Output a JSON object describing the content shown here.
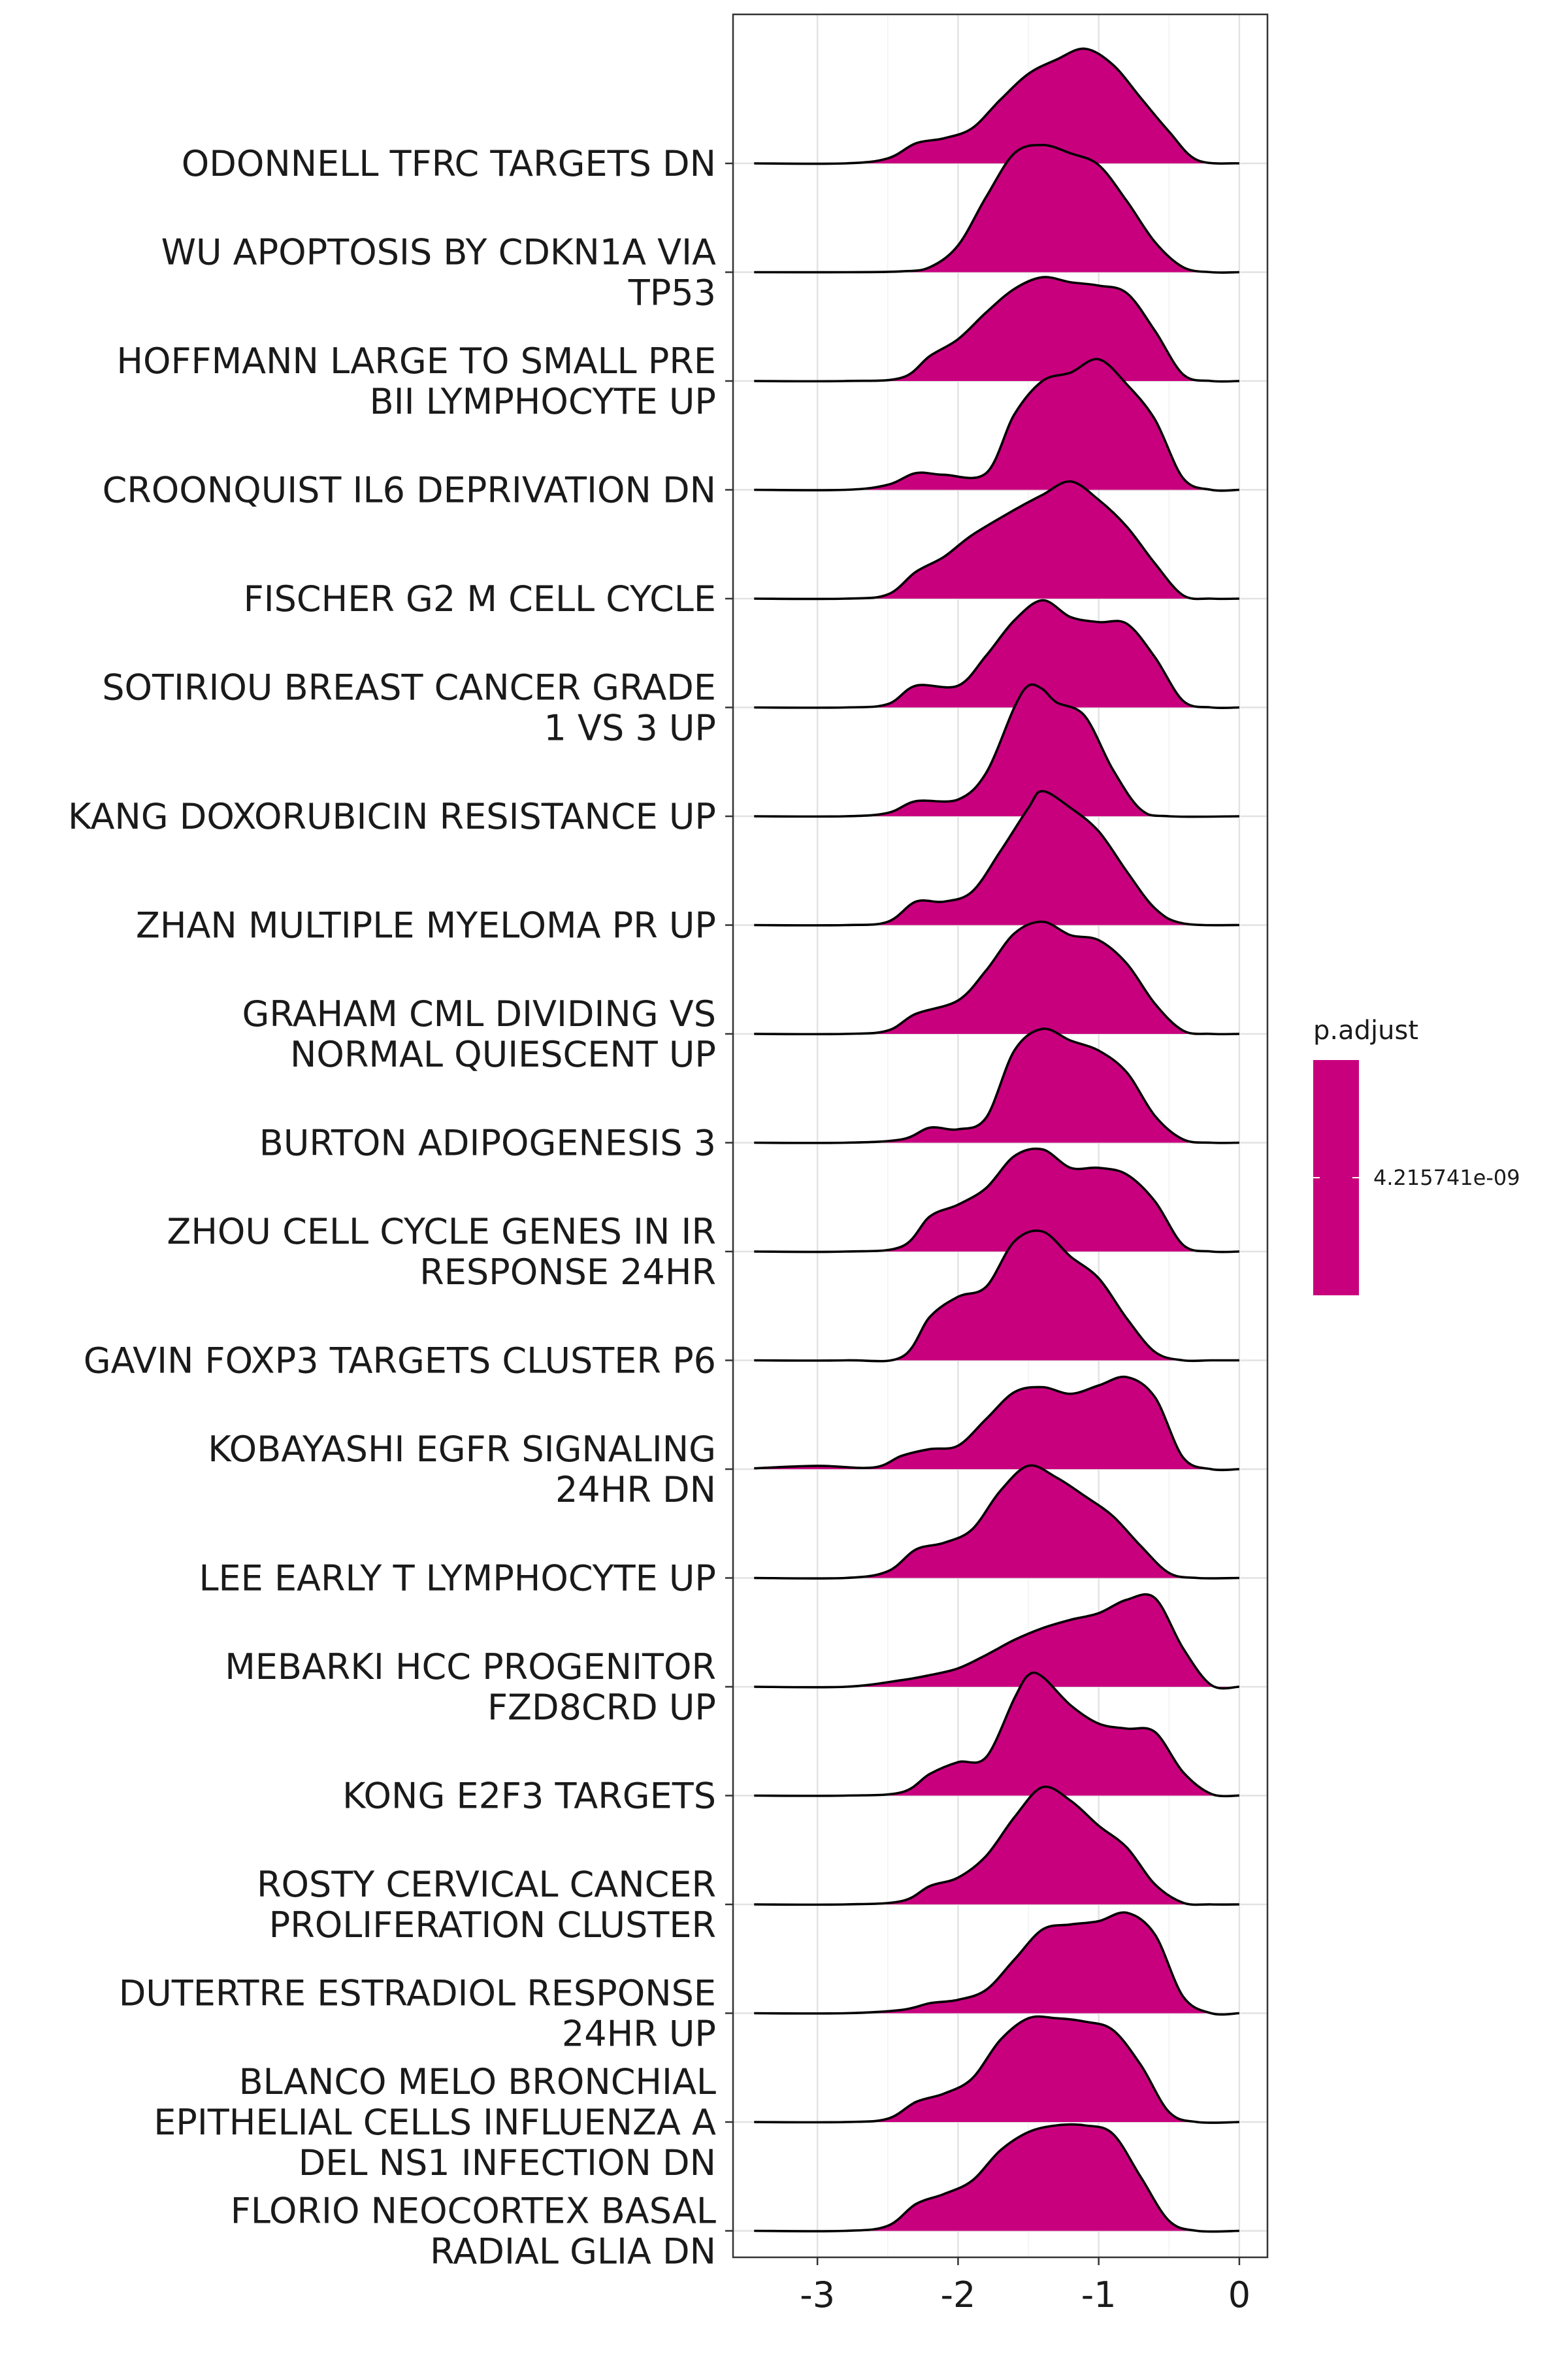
{
  "chart_data": {
    "type": "ridgeline",
    "xlim": [
      -3.6,
      0.2
    ],
    "x_ticks": [
      "-3",
      "-2",
      "-1",
      "0"
    ],
    "x_tick_values": [
      -3,
      -2,
      -1,
      0
    ],
    "fill_color": "#C9007E",
    "grid": true,
    "legend": {
      "title": "p.adjust",
      "tick_label": "4.215741e-09",
      "placement": "right"
    },
    "categories": [
      "ODONNELL TFRC TARGETS DN",
      "WU APOPTOSIS BY CDKN1A VIA\nTP53",
      "HOFFMANN LARGE TO SMALL PRE\nBII LYMPHOCYTE UP",
      "CROONQUIST IL6 DEPRIVATION DN",
      "FISCHER G2 M CELL CYCLE",
      "SOTIRIOU BREAST CANCER GRADE\n1 VS 3 UP",
      "KANG DOXORUBICIN RESISTANCE UP",
      "ZHAN MULTIPLE MYELOMA PR UP",
      "GRAHAM CML DIVIDING VS\nNORMAL QUIESCENT UP",
      "BURTON ADIPOGENESIS 3",
      "ZHOU CELL CYCLE GENES IN IR\nRESPONSE 24HR",
      "GAVIN FOXP3 TARGETS CLUSTER P6",
      "KOBAYASHI EGFR SIGNALING\n24HR DN",
      "LEE EARLY T LYMPHOCYTE UP",
      "MEBARKI HCC PROGENITOR\nFZD8CRD UP",
      "KONG E2F3 TARGETS",
      "ROSTY CERVICAL CANCER\nPROLIFERATION CLUSTER",
      "DUTERTRE ESTRADIOL RESPONSE\n24HR UP",
      "BLANCO MELO BRONCHIAL\nEPITHELIAL CELLS INFLUENZA A\nDEL NS1 INFECTION DN",
      "FLORIO NEOCORTEX BASAL\nRADIAL GLIA DN"
    ],
    "densities": [
      [
        [
          -3.45,
          0
        ],
        [
          -2.8,
          0
        ],
        [
          -2.5,
          0.06
        ],
        [
          -2.3,
          0.24
        ],
        [
          -2.1,
          0.3
        ],
        [
          -1.9,
          0.42
        ],
        [
          -1.7,
          0.76
        ],
        [
          -1.5,
          1.07
        ],
        [
          -1.3,
          1.24
        ],
        [
          -1.1,
          1.37
        ],
        [
          -0.9,
          1.18
        ],
        [
          -0.7,
          0.78
        ],
        [
          -0.5,
          0.38
        ],
        [
          -0.3,
          0.04
        ],
        [
          0,
          0
        ]
      ],
      [
        [
          -3.45,
          0
        ],
        [
          -2.8,
          0
        ],
        [
          -2.4,
          0.01
        ],
        [
          -2.2,
          0.06
        ],
        [
          -2.0,
          0.32
        ],
        [
          -1.8,
          0.9
        ],
        [
          -1.6,
          1.42
        ],
        [
          -1.4,
          1.52
        ],
        [
          -1.2,
          1.42
        ],
        [
          -1.0,
          1.28
        ],
        [
          -0.8,
          0.85
        ],
        [
          -0.6,
          0.36
        ],
        [
          -0.4,
          0.06
        ],
        [
          -0.2,
          0
        ],
        [
          0,
          0
        ]
      ],
      [
        [
          -3.45,
          0
        ],
        [
          -2.8,
          0
        ],
        [
          -2.4,
          0.04
        ],
        [
          -2.2,
          0.3
        ],
        [
          -2.0,
          0.5
        ],
        [
          -1.8,
          0.82
        ],
        [
          -1.6,
          1.1
        ],
        [
          -1.4,
          1.24
        ],
        [
          -1.2,
          1.18
        ],
        [
          -1.0,
          1.14
        ],
        [
          -0.8,
          1.05
        ],
        [
          -0.6,
          0.6
        ],
        [
          -0.4,
          0.08
        ],
        [
          -0.2,
          0
        ],
        [
          0,
          0
        ]
      ],
      [
        [
          -3.45,
          0
        ],
        [
          -2.8,
          0
        ],
        [
          -2.5,
          0.06
        ],
        [
          -2.3,
          0.2
        ],
        [
          -2.1,
          0.18
        ],
        [
          -1.8,
          0.2
        ],
        [
          -1.6,
          0.9
        ],
        [
          -1.4,
          1.3
        ],
        [
          -1.2,
          1.4
        ],
        [
          -1.0,
          1.56
        ],
        [
          -0.8,
          1.26
        ],
        [
          -0.6,
          0.84
        ],
        [
          -0.4,
          0.14
        ],
        [
          -0.2,
          0
        ],
        [
          0,
          0
        ]
      ],
      [
        [
          -3.45,
          0
        ],
        [
          -2.8,
          0
        ],
        [
          -2.5,
          0.05
        ],
        [
          -2.3,
          0.32
        ],
        [
          -2.1,
          0.5
        ],
        [
          -1.9,
          0.76
        ],
        [
          -1.6,
          1.06
        ],
        [
          -1.4,
          1.24
        ],
        [
          -1.2,
          1.4
        ],
        [
          -1.0,
          1.18
        ],
        [
          -0.8,
          0.86
        ],
        [
          -0.6,
          0.42
        ],
        [
          -0.4,
          0.04
        ],
        [
          -0.2,
          0
        ],
        [
          0,
          0
        ]
      ],
      [
        [
          -3.45,
          0
        ],
        [
          -2.8,
          0
        ],
        [
          -2.5,
          0.04
        ],
        [
          -2.3,
          0.26
        ],
        [
          -2.0,
          0.26
        ],
        [
          -1.8,
          0.62
        ],
        [
          -1.6,
          1.04
        ],
        [
          -1.4,
          1.28
        ],
        [
          -1.2,
          1.08
        ],
        [
          -1.0,
          1.02
        ],
        [
          -0.8,
          1.0
        ],
        [
          -0.6,
          0.6
        ],
        [
          -0.4,
          0.08
        ],
        [
          -0.2,
          0
        ],
        [
          0,
          0
        ]
      ],
      [
        [
          -3.45,
          0
        ],
        [
          -2.8,
          0
        ],
        [
          -2.5,
          0.04
        ],
        [
          -2.3,
          0.18
        ],
        [
          -2.0,
          0.2
        ],
        [
          -1.8,
          0.52
        ],
        [
          -1.6,
          1.3
        ],
        [
          -1.5,
          1.56
        ],
        [
          -1.4,
          1.52
        ],
        [
          -1.3,
          1.36
        ],
        [
          -1.1,
          1.2
        ],
        [
          -0.9,
          0.56
        ],
        [
          -0.7,
          0.08
        ],
        [
          -0.5,
          0
        ],
        [
          0,
          0
        ]
      ],
      [
        [
          -3.45,
          0
        ],
        [
          -2.8,
          0
        ],
        [
          -2.5,
          0.04
        ],
        [
          -2.3,
          0.28
        ],
        [
          -2.1,
          0.28
        ],
        [
          -1.9,
          0.4
        ],
        [
          -1.7,
          0.88
        ],
        [
          -1.5,
          1.4
        ],
        [
          -1.4,
          1.6
        ],
        [
          -1.2,
          1.4
        ],
        [
          -1.0,
          1.12
        ],
        [
          -0.8,
          0.64
        ],
        [
          -0.6,
          0.2
        ],
        [
          -0.4,
          0.02
        ],
        [
          0,
          0
        ]
      ],
      [
        [
          -3.45,
          0
        ],
        [
          -2.8,
          0
        ],
        [
          -2.5,
          0.04
        ],
        [
          -2.3,
          0.24
        ],
        [
          -2.0,
          0.4
        ],
        [
          -1.8,
          0.76
        ],
        [
          -1.6,
          1.2
        ],
        [
          -1.4,
          1.34
        ],
        [
          -1.2,
          1.18
        ],
        [
          -1.0,
          1.12
        ],
        [
          -0.8,
          0.84
        ],
        [
          -0.6,
          0.36
        ],
        [
          -0.4,
          0.04
        ],
        [
          -0.2,
          0
        ],
        [
          0,
          0
        ]
      ],
      [
        [
          -3.45,
          0
        ],
        [
          -2.8,
          0
        ],
        [
          -2.4,
          0.04
        ],
        [
          -2.2,
          0.18
        ],
        [
          -2.0,
          0.16
        ],
        [
          -1.8,
          0.3
        ],
        [
          -1.6,
          1.1
        ],
        [
          -1.4,
          1.36
        ],
        [
          -1.2,
          1.22
        ],
        [
          -1.0,
          1.1
        ],
        [
          -0.8,
          0.84
        ],
        [
          -0.6,
          0.32
        ],
        [
          -0.4,
          0.04
        ],
        [
          -0.2,
          0
        ],
        [
          0,
          0
        ]
      ],
      [
        [
          -3.45,
          0
        ],
        [
          -2.8,
          0
        ],
        [
          -2.4,
          0.06
        ],
        [
          -2.2,
          0.42
        ],
        [
          -2.0,
          0.56
        ],
        [
          -1.8,
          0.76
        ],
        [
          -1.6,
          1.14
        ],
        [
          -1.4,
          1.22
        ],
        [
          -1.2,
          1.0
        ],
        [
          -1.0,
          1.0
        ],
        [
          -0.8,
          0.92
        ],
        [
          -0.6,
          0.6
        ],
        [
          -0.4,
          0.08
        ],
        [
          -0.2,
          0
        ],
        [
          0,
          0
        ]
      ],
      [
        [
          -3.45,
          0
        ],
        [
          -2.8,
          0
        ],
        [
          -2.4,
          0.04
        ],
        [
          -2.2,
          0.52
        ],
        [
          -2.0,
          0.76
        ],
        [
          -1.8,
          0.88
        ],
        [
          -1.6,
          1.42
        ],
        [
          -1.4,
          1.54
        ],
        [
          -1.2,
          1.24
        ],
        [
          -1.0,
          0.98
        ],
        [
          -0.8,
          0.5
        ],
        [
          -0.6,
          0.1
        ],
        [
          -0.4,
          0
        ],
        [
          -0.2,
          0
        ],
        [
          0,
          0
        ]
      ],
      [
        [
          -3.45,
          0.01
        ],
        [
          -3.0,
          0.04
        ],
        [
          -2.6,
          0.02
        ],
        [
          -2.4,
          0.16
        ],
        [
          -2.2,
          0.24
        ],
        [
          -2.0,
          0.28
        ],
        [
          -1.8,
          0.6
        ],
        [
          -1.6,
          0.92
        ],
        [
          -1.4,
          0.98
        ],
        [
          -1.2,
          0.9
        ],
        [
          -1.0,
          1.0
        ],
        [
          -0.8,
          1.1
        ],
        [
          -0.6,
          0.86
        ],
        [
          -0.4,
          0.14
        ],
        [
          -0.2,
          0
        ],
        [
          0,
          0
        ]
      ],
      [
        [
          -3.45,
          0
        ],
        [
          -2.8,
          0
        ],
        [
          -2.5,
          0.08
        ],
        [
          -2.3,
          0.34
        ],
        [
          -2.1,
          0.42
        ],
        [
          -1.9,
          0.58
        ],
        [
          -1.7,
          1.04
        ],
        [
          -1.5,
          1.34
        ],
        [
          -1.3,
          1.2
        ],
        [
          -1.1,
          0.98
        ],
        [
          -0.9,
          0.74
        ],
        [
          -0.7,
          0.38
        ],
        [
          -0.5,
          0.06
        ],
        [
          -0.3,
          0
        ],
        [
          0,
          0
        ]
      ],
      [
        [
          -3.45,
          0
        ],
        [
          -2.8,
          0
        ],
        [
          -2.4,
          0.08
        ],
        [
          -2.2,
          0.14
        ],
        [
          -2.0,
          0.22
        ],
        [
          -1.8,
          0.38
        ],
        [
          -1.6,
          0.56
        ],
        [
          -1.4,
          0.7
        ],
        [
          -1.2,
          0.8
        ],
        [
          -1.0,
          0.88
        ],
        [
          -0.8,
          1.04
        ],
        [
          -0.6,
          1.06
        ],
        [
          -0.4,
          0.46
        ],
        [
          -0.2,
          0.02
        ],
        [
          0,
          0
        ]
      ],
      [
        [
          -3.45,
          0
        ],
        [
          -2.8,
          0
        ],
        [
          -2.4,
          0.04
        ],
        [
          -2.2,
          0.26
        ],
        [
          -2.0,
          0.4
        ],
        [
          -1.8,
          0.46
        ],
        [
          -1.6,
          1.16
        ],
        [
          -1.5,
          1.44
        ],
        [
          -1.4,
          1.42
        ],
        [
          -1.2,
          1.08
        ],
        [
          -1.0,
          0.86
        ],
        [
          -0.8,
          0.8
        ],
        [
          -0.6,
          0.76
        ],
        [
          -0.4,
          0.28
        ],
        [
          -0.2,
          0.02
        ],
        [
          0,
          0
        ]
      ],
      [
        [
          -3.45,
          0
        ],
        [
          -2.8,
          0
        ],
        [
          -2.4,
          0.04
        ],
        [
          -2.2,
          0.22
        ],
        [
          -2.0,
          0.32
        ],
        [
          -1.8,
          0.58
        ],
        [
          -1.6,
          1.04
        ],
        [
          -1.4,
          1.4
        ],
        [
          -1.2,
          1.24
        ],
        [
          -1.0,
          0.94
        ],
        [
          -0.8,
          0.68
        ],
        [
          -0.6,
          0.24
        ],
        [
          -0.4,
          0.02
        ],
        [
          -0.2,
          0
        ],
        [
          0,
          0
        ]
      ],
      [
        [
          -3.45,
          0
        ],
        [
          -2.8,
          0
        ],
        [
          -2.4,
          0.04
        ],
        [
          -2.2,
          0.12
        ],
        [
          -2.0,
          0.16
        ],
        [
          -1.8,
          0.28
        ],
        [
          -1.6,
          0.64
        ],
        [
          -1.4,
          1.0
        ],
        [
          -1.2,
          1.06
        ],
        [
          -1.0,
          1.1
        ],
        [
          -0.8,
          1.2
        ],
        [
          -0.6,
          0.94
        ],
        [
          -0.4,
          0.2
        ],
        [
          -0.2,
          0
        ],
        [
          0,
          0
        ]
      ],
      [
        [
          -3.45,
          0
        ],
        [
          -2.8,
          0
        ],
        [
          -2.5,
          0.04
        ],
        [
          -2.3,
          0.24
        ],
        [
          -2.1,
          0.34
        ],
        [
          -1.9,
          0.52
        ],
        [
          -1.7,
          0.98
        ],
        [
          -1.5,
          1.24
        ],
        [
          -1.3,
          1.24
        ],
        [
          -1.1,
          1.2
        ],
        [
          -0.9,
          1.1
        ],
        [
          -0.7,
          0.68
        ],
        [
          -0.5,
          0.12
        ],
        [
          -0.3,
          0
        ],
        [
          0,
          0
        ]
      ],
      [
        [
          -3.45,
          0
        ],
        [
          -2.8,
          0
        ],
        [
          -2.5,
          0.06
        ],
        [
          -2.3,
          0.32
        ],
        [
          -2.1,
          0.44
        ],
        [
          -1.9,
          0.6
        ],
        [
          -1.7,
          0.96
        ],
        [
          -1.5,
          1.18
        ],
        [
          -1.3,
          1.26
        ],
        [
          -1.1,
          1.26
        ],
        [
          -0.9,
          1.16
        ],
        [
          -0.7,
          0.64
        ],
        [
          -0.5,
          0.12
        ],
        [
          -0.3,
          0
        ],
        [
          0,
          0
        ]
      ]
    ]
  }
}
